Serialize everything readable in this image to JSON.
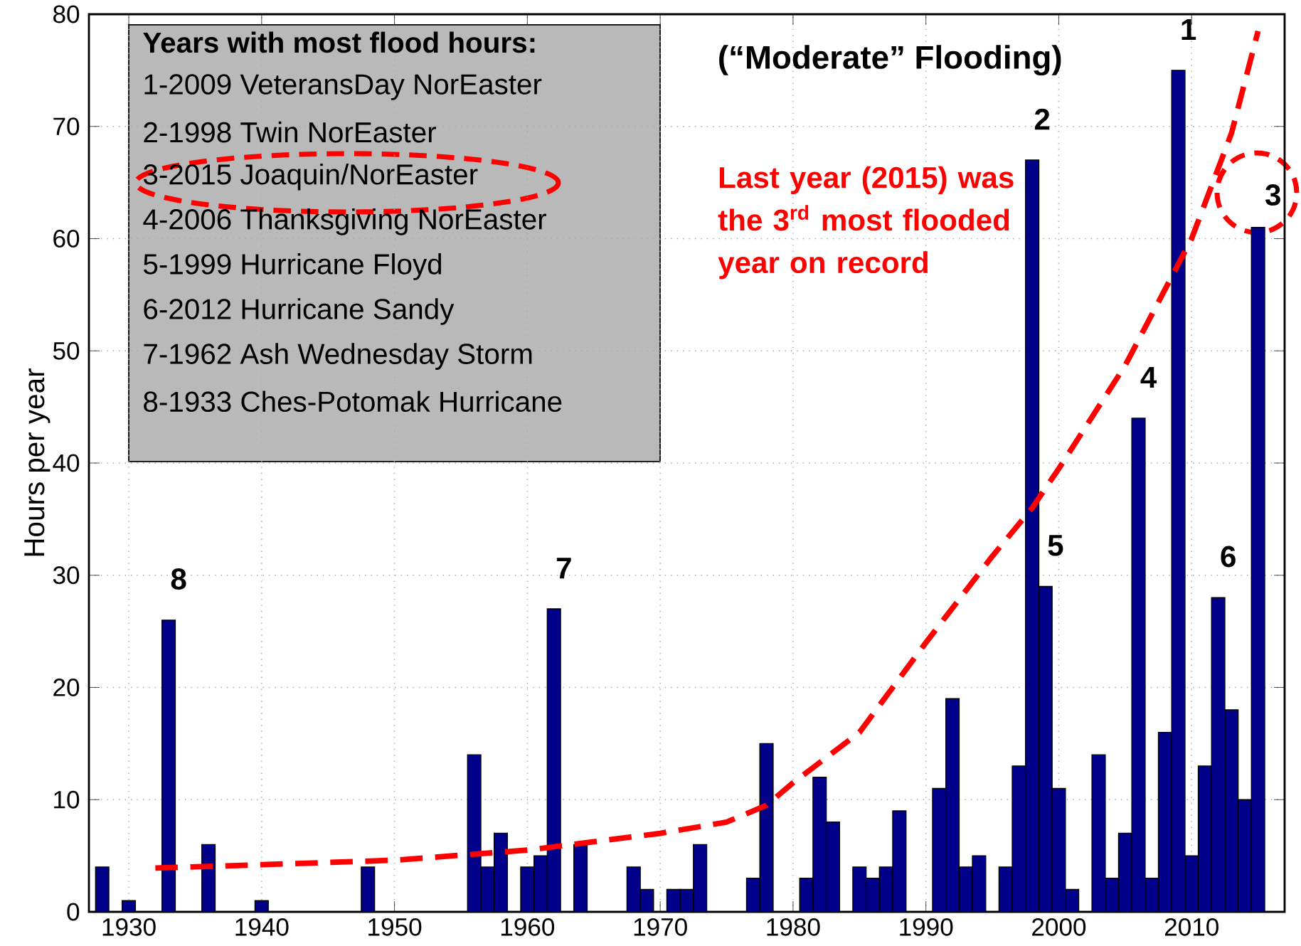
{
  "chart_data": {
    "type": "bar",
    "title": "(“Moderate” Flooding)",
    "ylabel": "Hours per year",
    "x": [
      1928,
      1930,
      1933,
      1936,
      1940,
      1948,
      1956,
      1957,
      1958,
      1960,
      1961,
      1962,
      1964,
      1968,
      1969,
      1971,
      1972,
      1973,
      1977,
      1978,
      1981,
      1982,
      1983,
      1985,
      1986,
      1987,
      1988,
      1991,
      1992,
      1993,
      1994,
      1996,
      1997,
      1998,
      1999,
      2000,
      2001,
      2003,
      2004,
      2005,
      2006,
      2007,
      2008,
      2009,
      2010,
      2011,
      2012,
      2013,
      2014,
      2015
    ],
    "series": [
      {
        "color": "#00008b",
        "values": [
          4,
          1,
          26,
          6,
          1,
          4,
          14,
          4,
          7,
          4,
          5,
          27,
          6,
          4,
          2,
          2,
          2,
          6,
          3,
          15,
          3,
          12,
          8,
          4,
          3,
          4,
          9,
          11,
          19,
          4,
          5,
          4,
          13,
          67,
          29,
          11,
          2,
          14,
          3,
          7,
          44,
          3,
          16,
          75,
          5,
          13,
          28,
          18,
          10,
          61
        ]
      },
      {
        "type": "line",
        "color": "#ff0000",
        "line_style": "dashed",
        "x": [
          1932,
          1940,
          1950,
          1960,
          1970,
          1975,
          1978,
          1980,
          1985,
          1990,
          1995,
          1998,
          2000,
          2005,
          2010,
          2013,
          2015
        ],
        "values": [
          3.9,
          4.2,
          4.6,
          5.5,
          7,
          8,
          9.5,
          11.5,
          16,
          24,
          31.7,
          36,
          39.5,
          48.7,
          60,
          69.4,
          78.5
        ]
      }
    ],
    "xlim": [
      1927,
      2017
    ],
    "ylim": [
      0,
      80
    ],
    "xticks": [
      1930,
      1940,
      1950,
      1960,
      1970,
      1980,
      1990,
      2000,
      2010
    ],
    "yticks": [
      0,
      10,
      20,
      30,
      40,
      50,
      60,
      70,
      80
    ],
    "grid": true,
    "annotations": [
      "Years with most flood hours:",
      "1-2009 VeteransDay NorEaster",
      "2-1998 Twin NorEaster",
      "3-2015 Joaquin/NorEaster",
      "4-2006 Thanksgiving NorEaster",
      "5-1999 Hurricane Floyd",
      "6-2012 Hurricane Sandy",
      "7-1962 Ash Wednesday Storm",
      "8-1933 Ches-Potomak Hurricane",
      "Last year (2015) was the 3$^{rd}$ most flooded year on record",
      {
        "text": "8",
        "x": 1933,
        "y": 26
      },
      {
        "text": "7",
        "x": 1962,
        "y": 27
      },
      {
        "text": "2",
        "x": 1998,
        "y": 67
      },
      {
        "text": "5",
        "x": 1999,
        "y": 29
      },
      {
        "text": "4",
        "x": 2006,
        "y": 44
      },
      {
        "text": "1",
        "x": 2009,
        "y": 75
      },
      {
        "text": "6",
        "x": 2012,
        "y": 28
      },
      {
        "text": "3",
        "x": 2015,
        "y": 61
      }
    ]
  }
}
